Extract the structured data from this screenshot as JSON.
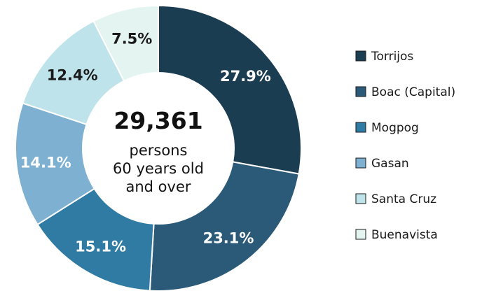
{
  "chart_data": {
    "type": "pie",
    "donut": true,
    "categories": [
      "Torrijos",
      "Boac (Capital)",
      "Mogpog",
      "Gasan",
      "Santa Cruz",
      "Buenavista"
    ],
    "values": [
      27.9,
      23.1,
      15.1,
      14.1,
      12.4,
      7.5
    ],
    "value_labels": [
      "27.9%",
      "23.1%",
      "15.1%",
      "14.1%",
      "12.4%",
      "7.5%"
    ],
    "colors": [
      "#1b3d52",
      "#2b5a79",
      "#2f7ba3",
      "#7eb0d2",
      "#bfe3ea",
      "#e4f4f0"
    ],
    "label_colors": [
      "#ffffff",
      "#ffffff",
      "#ffffff",
      "#ffffff",
      "#1a1a1a",
      "#1a1a1a"
    ],
    "center": {
      "total": "29,361",
      "lines": [
        "persons",
        "60 years old",
        "and over"
      ]
    },
    "legend": {
      "position": "right",
      "entries": [
        "Torrijos",
        "Boac (Capital)",
        "Mogpog",
        "Gasan",
        "Santa Cruz",
        "Buenavista"
      ]
    }
  }
}
